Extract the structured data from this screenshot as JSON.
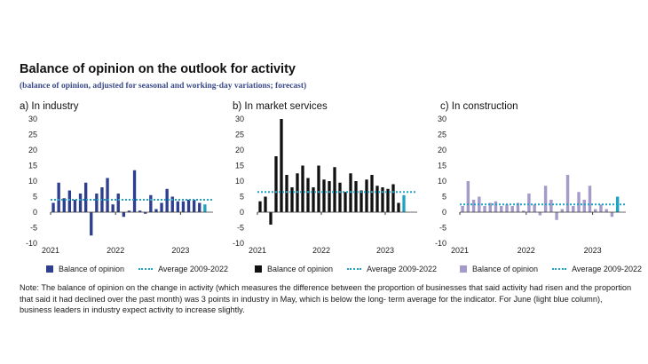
{
  "title": "Balance of opinion on the outlook for activity",
  "subtitle": "(balance of opinion, adjusted for seasonal and working-day variations; forecast)",
  "note": "Note: The balance of opinion on the change in activity (which measures the difference between the proportion of businesses that said activity had risen and the proportion that said it had declined over the past month) was 3 points in industry in May, which is below the long- term average for the indicator. For June (light blue column), business leaders in industry expect activity to increase slightly.",
  "colors": {
    "forecast": "#1fa3c4",
    "average": "#1fa3c4"
  },
  "chart_data": [
    {
      "type": "bar",
      "panel_title": "a) In industry",
      "bar_color": "#2e3f8f",
      "x_start": "2021-01",
      "x_tick_labels": [
        "2021",
        "2022",
        "2023"
      ],
      "ylim": [
        -10,
        30
      ],
      "y_ticks": [
        -10,
        -5,
        0,
        5,
        10,
        15,
        20,
        25,
        30
      ],
      "series": [
        {
          "name": "Balance of opinion",
          "values": [
            3,
            9.5,
            4.5,
            7,
            4,
            6,
            9.5,
            -7.5,
            6,
            8,
            11,
            2.5,
            6,
            -1.5,
            0.5,
            13.5,
            0.5,
            -0.5,
            5.5,
            1,
            3,
            7.5,
            5,
            3.5,
            3.5,
            4,
            4,
            3,
            2.5
          ]
        },
        {
          "name": "Average 2009-2022",
          "values": [
            4
          ]
        }
      ],
      "forecast_index": 28,
      "legend": [
        "Balance of opinion",
        "Average 2009-2022"
      ]
    },
    {
      "type": "bar",
      "panel_title": "b) In market services",
      "bar_color": "#111111",
      "x_start": "2021-01",
      "x_tick_labels": [
        "2021",
        "2022",
        "2023"
      ],
      "ylim": [
        -10,
        30
      ],
      "y_ticks": [
        -10,
        -5,
        0,
        5,
        10,
        15,
        20,
        25,
        30
      ],
      "series": [
        {
          "name": "Balance of opinion",
          "values": [
            3.5,
            5,
            -4,
            18,
            30,
            12,
            8,
            12.5,
            15,
            11,
            8,
            15,
            10.5,
            10,
            14.5,
            9.5,
            6.5,
            12.5,
            10,
            7,
            10.5,
            12,
            8.5,
            8,
            7.5,
            9,
            3,
            5.5
          ]
        },
        {
          "name": "Average 2009-2022",
          "values": [
            6.5
          ]
        }
      ],
      "forecast_index": 27,
      "legend": [
        "Balance of opinion",
        "Average 2009-2022"
      ]
    },
    {
      "type": "bar",
      "panel_title": "c) In construction",
      "bar_color": "#a69bc8",
      "x_start": "2021-01",
      "x_tick_labels": [
        "2021",
        "2022",
        "2023"
      ],
      "ylim": [
        -10,
        30
      ],
      "y_ticks": [
        -10,
        -5,
        0,
        5,
        10,
        15,
        20,
        25,
        30
      ],
      "series": [
        {
          "name": "Balance of opinion",
          "values": [
            2,
            10,
            4,
            5,
            2,
            3,
            3.5,
            2,
            2.5,
            2,
            3,
            0.5,
            6,
            2.5,
            -1,
            8.5,
            4,
            -2.5,
            1,
            12,
            2,
            6.5,
            4,
            8.5,
            1,
            2.5,
            1,
            -1.5,
            5
          ]
        },
        {
          "name": "Average 2009-2022",
          "values": [
            2.5
          ]
        }
      ],
      "forecast_index": 28,
      "legend": [
        "Balance of opinion",
        "Average 2009-2022"
      ]
    }
  ]
}
